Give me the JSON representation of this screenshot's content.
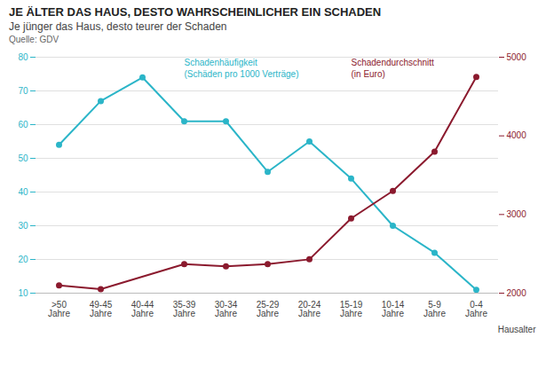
{
  "chart_data": {
    "type": "line",
    "title": "JE ÄLTER DAS HAUS, DESTO WAHRSCHEINLICHER EIN SCHADEN",
    "subtitle": "Je jünger das Haus, desto teurer der Schaden",
    "caption": "Quelle: GDV",
    "xlabel": "Hausalter",
    "categories": [
      ">50\nJahre",
      "49-45\nJahre",
      "40-44\nJahre",
      "35-39\nJahre",
      "30-34\nJahre",
      "25-29\nJahre",
      "20-24\nJahre",
      "15-19\nJahre",
      "10-14\nJahre",
      "5-9\nJahre",
      "0-4\nJahre"
    ],
    "series": [
      {
        "color": "#2BB5C8",
        "marker": "circle",
        "values": [
          54,
          67,
          74,
          61,
          61,
          46,
          55,
          44,
          30,
          22,
          11
        ]
      },
      {
        "color": "#8B1A2E",
        "marker": "circle",
        "axis": "y2",
        "values": [
          2100,
          2050,
          null,
          2370,
          2340,
          2370,
          2430,
          2950,
          3300,
          3800,
          4750
        ]
      }
    ],
    "ylim": [
      10,
      80
    ],
    "yticks": [
      10,
      20,
      30,
      40,
      50,
      60,
      70,
      80
    ],
    "y2lim": [
      2000,
      5000
    ],
    "y2ticks": [
      2000,
      3000,
      4000,
      5000
    ],
    "grid": true,
    "annotations": [
      {
        "text": "Schadenhäufigkeit\n(Schäden pro 1000 Verträge)",
        "color": "#2BB5C8"
      },
      {
        "text": "Schadendurchschnitt\n(in Euro)",
        "color": "#8B1A2E"
      }
    ]
  }
}
